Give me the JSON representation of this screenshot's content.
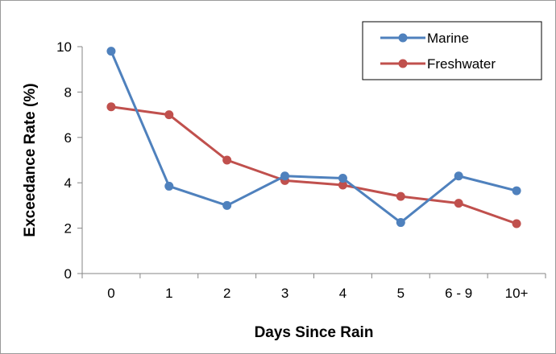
{
  "chart_data": {
    "type": "line",
    "title": "",
    "xlabel": "Days Since Rain",
    "ylabel": "Exceedance Rate (%)",
    "categories": [
      "0",
      "1",
      "2",
      "3",
      "4",
      "5",
      "6 - 9",
      "10+"
    ],
    "ylim": [
      0,
      10
    ],
    "yticks": [
      0,
      2,
      4,
      6,
      8,
      10
    ],
    "grid": false,
    "legend_position": "top-right",
    "series": [
      {
        "name": "Marine",
        "color": "#4f81bd",
        "values": [
          9.8,
          3.85,
          3.0,
          4.3,
          4.2,
          2.25,
          4.3,
          3.65
        ]
      },
      {
        "name": "Freshwater",
        "color": "#c0504d",
        "values": [
          7.35,
          7.0,
          5.0,
          4.1,
          3.9,
          3.4,
          3.1,
          2.2
        ]
      }
    ]
  }
}
